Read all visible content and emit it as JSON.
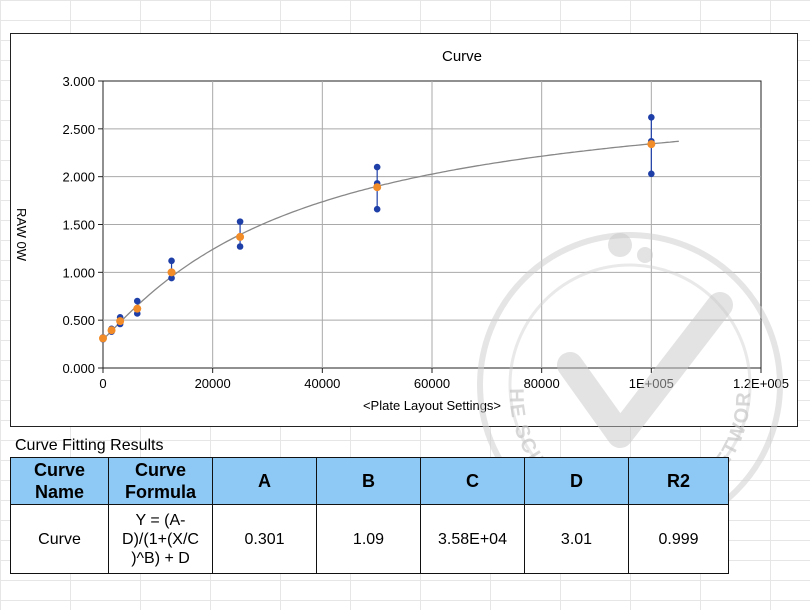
{
  "chart_data": {
    "type": "scatter",
    "title": "Curve",
    "xlabel": "<Plate Layout Settings>",
    "ylabel": "RAW 0W",
    "xlim": [
      0,
      120000
    ],
    "ylim": [
      0,
      3.0
    ],
    "x_ticks": [
      0,
      20000,
      40000,
      60000,
      80000,
      100000,
      120000
    ],
    "x_tick_labels": [
      "0",
      "20000",
      "40000",
      "60000",
      "80000",
      "1E+005",
      "1.2E+005"
    ],
    "y_ticks": [
      0,
      0.5,
      1.0,
      1.5,
      2.0,
      2.5,
      3.0
    ],
    "y_tick_labels": [
      "0.000",
      "0.500",
      "1.000",
      "1.500",
      "2.000",
      "2.500",
      "3.000"
    ],
    "grid": true,
    "series": [
      {
        "kind": "replicates",
        "color": "#1f3fa8",
        "points": [
          [
            0,
            0.3
          ],
          [
            0,
            0.32
          ],
          [
            1560,
            0.38
          ],
          [
            1560,
            0.41
          ],
          [
            3125,
            0.46
          ],
          [
            3125,
            0.53
          ],
          [
            6250,
            0.57
          ],
          [
            6250,
            0.7
          ],
          [
            12500,
            0.94
          ],
          [
            12500,
            1.12
          ],
          [
            25000,
            1.27
          ],
          [
            25000,
            1.53
          ],
          [
            50000,
            1.66
          ],
          [
            50000,
            1.93
          ],
          [
            50000,
            2.1
          ],
          [
            100000,
            2.03
          ],
          [
            100000,
            2.37
          ],
          [
            100000,
            2.62
          ]
        ]
      },
      {
        "kind": "means",
        "color": "#f28c28",
        "x": [
          0,
          1560,
          3125,
          6250,
          12500,
          25000,
          50000,
          100000
        ],
        "y": [
          0.31,
          0.395,
          0.49,
          0.62,
          1.0,
          1.37,
          1.89,
          2.34
        ],
        "err_low": [
          0.3,
          0.37,
          0.44,
          0.56,
          0.93,
          1.24,
          1.64,
          2.03
        ],
        "err_high": [
          0.33,
          0.42,
          0.54,
          0.71,
          1.12,
          1.54,
          2.11,
          2.63
        ]
      },
      {
        "kind": "fit",
        "color": "#888888",
        "model": "4PL",
        "params": {
          "A": 0.301,
          "B": 1.09,
          "C": 35800,
          "D": 3.01
        },
        "x_range": [
          0,
          105000
        ]
      }
    ]
  },
  "results": {
    "section_title": "Curve Fitting Results",
    "headers": {
      "name": "Curve Name",
      "formula": "Curve Formula",
      "a": "A",
      "b": "B",
      "c": "C",
      "d": "D",
      "r2": "R2"
    },
    "row": {
      "name": "Curve",
      "formula": "Y = (A-\nD)/(1+(X/C\n)^B) + D",
      "a": "0.301",
      "b": "1.09",
      "c": "3.58E+04",
      "d": "3.01",
      "r2": "0.999"
    }
  },
  "watermark": {
    "text": "THE SCIENCE EXCHANGE NETWORK",
    "icon": "checkmark-logo-icon"
  }
}
